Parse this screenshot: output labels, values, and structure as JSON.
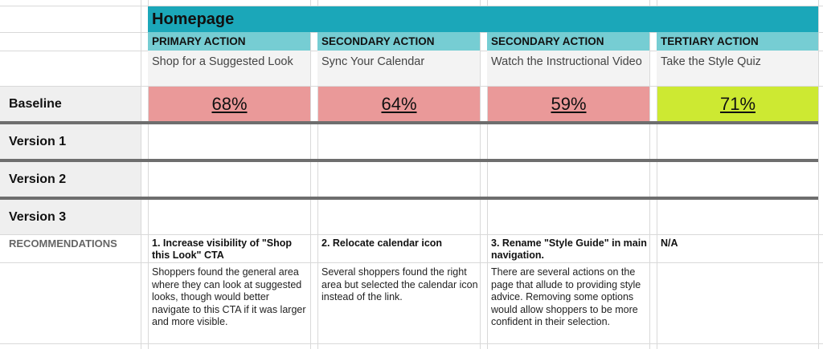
{
  "section_title": "Homepage",
  "actions": [
    {
      "type": "PRIMARY ACTION",
      "name": "Shop for a Suggested Look",
      "baseline": "68%",
      "baseline_color": "#ea9999",
      "rec_title": "1. Increase visibility of \"Shop this Look\" CTA",
      "rec_body": "Shoppers found the general area where they can look at suggested looks, though would better navigate to this CTA if it was larger and more visible."
    },
    {
      "type": "SECONDARY ACTION",
      "name": "Sync Your Calendar",
      "baseline": "64%",
      "baseline_color": "#ea9999",
      "rec_title": "2. Relocate calendar icon",
      "rec_body": "Several shoppers found the right area but selected the calendar icon instead of the link."
    },
    {
      "type": "SECONDARY ACTION",
      "name": "Watch the Instructional Video",
      "baseline": "59%",
      "baseline_color": "#ea9999",
      "rec_title": "3. Rename \"Style Guide\" in main navigation.",
      "rec_body": "There are several actions on the page that allude to providing style advice. Removing some options would allow shoppers to be more confident in their selection."
    },
    {
      "type": "TERTIARY ACTION",
      "name": "Take the Style Quiz",
      "baseline": "71%",
      "baseline_color": "#cde932",
      "rec_title": "N/A",
      "rec_body": ""
    }
  ],
  "rows": {
    "baseline": "Baseline",
    "version1": "Version 1",
    "version2": "Version 2",
    "version3": "Version 3",
    "recommendations": "RECOMMENDATIONS"
  }
}
